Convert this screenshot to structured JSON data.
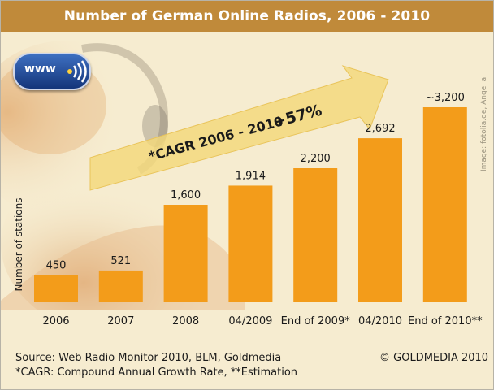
{
  "header": {
    "title": "Number of German Online Radios, 2006 - 2010"
  },
  "badge": {
    "text": "www"
  },
  "image_credit": "Image: fotolia.de, Angel a",
  "chart_data": {
    "type": "bar",
    "title": "Number of German Online Radios, 2006 - 2010",
    "ylabel": "Number of stations",
    "xlabel": "",
    "categories": [
      "2006",
      "2007",
      "2008",
      "04/2009",
      "End of 2009*",
      "04/2010",
      "End of 2010**"
    ],
    "values": [
      450,
      521,
      1600,
      1914,
      2200,
      2692,
      3200
    ],
    "value_labels": [
      "450",
      "521",
      "1,600",
      "1,914",
      "2,200",
      "2,692",
      "~3,200"
    ],
    "ylim": [
      0,
      3200
    ],
    "bar_color": "#f39c1a",
    "annotation": {
      "text": "*CAGR 2006 - 2010",
      "value": "+57%"
    }
  },
  "footer": {
    "source": "Source: Web Radio Monitor 2010, BLM, Goldmedia",
    "note": "*CAGR: Compound Annual Growth Rate, **Estimation",
    "copyright": "© GOLDMEDIA 2010"
  }
}
